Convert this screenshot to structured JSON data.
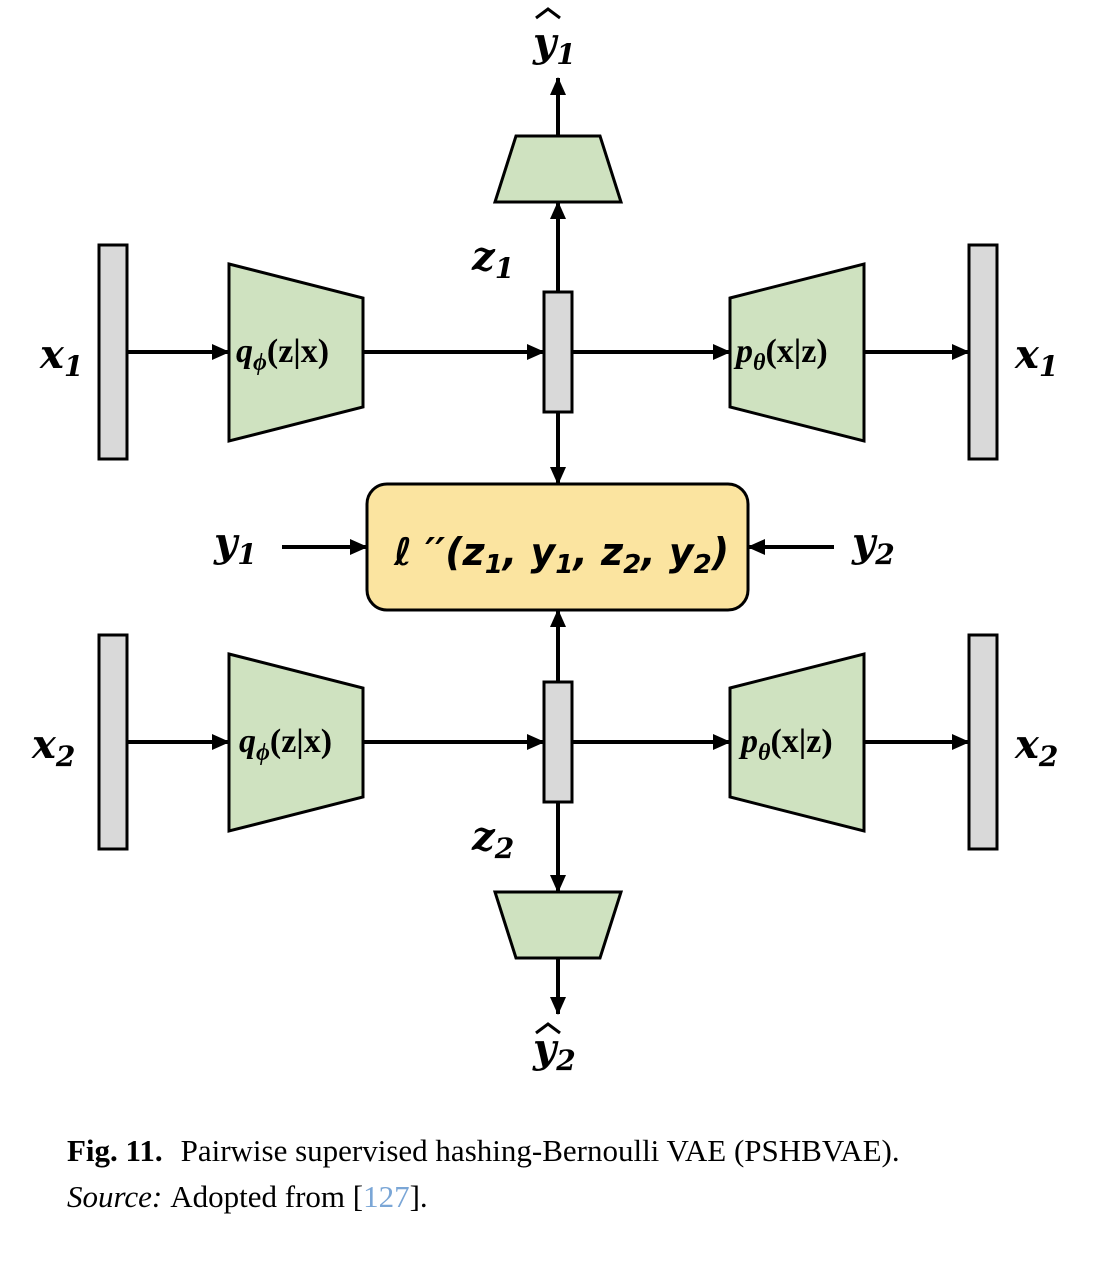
{
  "diagram": {
    "inputs": {
      "x1_in": "x",
      "x1_in_sub": "1",
      "x2_in": "x",
      "x2_in_sub": "2",
      "x1_out": "x",
      "x1_out_sub": "1",
      "x2_out": "x",
      "x2_out_sub": "2",
      "y1": "y",
      "y1_sub": "1",
      "y2": "y",
      "y2_sub": "2"
    },
    "latents": {
      "z1": "z",
      "z1_sub": "1",
      "z2": "z",
      "z2_sub": "2"
    },
    "predictions": {
      "yhat1": "y",
      "yhat1_sub": "1",
      "yhat2": "y",
      "yhat2_sub": "2"
    },
    "encoder": {
      "q": "q",
      "q_sub": "ϕ",
      "args": "(z|x)"
    },
    "decoder": {
      "p": "p",
      "p_sub": "θ",
      "args": "(x|z)"
    },
    "loss": {
      "label": "ℓ ′′(z",
      "s1": "1",
      "mid1": ", y",
      "s2": "1",
      "mid2": ", z",
      "s3": "2",
      "mid3": ", y",
      "s4": "2",
      "end": ")"
    },
    "colors": {
      "network_fill": "#cfe2c0",
      "vector_fill": "#d9d9d9",
      "loss_fill": "#fbe4a0"
    }
  },
  "caption": {
    "fig_label": "Fig. 11.",
    "text": "Pairwise supervised hashing-Bernoulli VAE (PSHBVAE).",
    "source_label": "Source:",
    "source_text": "Adopted from [",
    "ref_number": "127",
    "source_end": "]."
  }
}
